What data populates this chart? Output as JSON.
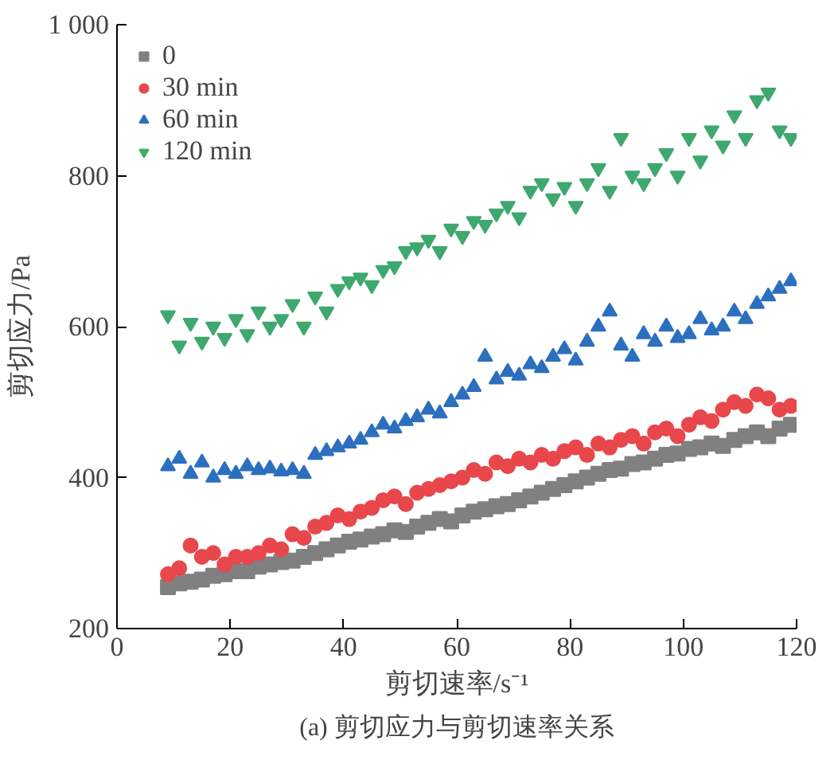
{
  "chart_data": {
    "type": "scatter",
    "title": "(a) 剪切应力与剪切速率关系",
    "xlabel": "剪切速率/s⁻¹",
    "ylabel": "剪切应力/Pa",
    "x": [
      9,
      11,
      13,
      15,
      17,
      19,
      21,
      23,
      25,
      27,
      29,
      31,
      33,
      35,
      37,
      39,
      41,
      43,
      45,
      47,
      49,
      51,
      53,
      55,
      57,
      59,
      61,
      63,
      65,
      67,
      69,
      71,
      73,
      75,
      77,
      79,
      81,
      83,
      85,
      87,
      89,
      91,
      93,
      95,
      97,
      99,
      101,
      103,
      105,
      107,
      109,
      111,
      113,
      115,
      117,
      119
    ],
    "xlim": [
      0,
      120
    ],
    "xticks": [
      0,
      20,
      40,
      60,
      80,
      100,
      120
    ],
    "ylim": [
      200,
      1000
    ],
    "yticks": [
      200,
      400,
      600,
      800,
      {
        "value": 1000,
        "label": "1 000"
      }
    ],
    "legend": "top left",
    "grid": false,
    "series": [
      {
        "name": "0",
        "color": "#808080",
        "marker": "square",
        "values": [
          255,
          260,
          262,
          265,
          270,
          272,
          276,
          276,
          282,
          285,
          288,
          290,
          295,
          300,
          305,
          310,
          315,
          318,
          322,
          325,
          330,
          328,
          335,
          340,
          345,
          342,
          350,
          355,
          358,
          362,
          365,
          370,
          375,
          380,
          385,
          390,
          395,
          400,
          405,
          410,
          412,
          418,
          420,
          425,
          430,
          432,
          438,
          440,
          445,
          442,
          450,
          455,
          460,
          455,
          465,
          470
        ]
      },
      {
        "name": "30 min",
        "color": "#e8474c",
        "marker": "circle",
        "values": [
          272,
          280,
          310,
          295,
          300,
          285,
          295,
          295,
          300,
          310,
          305,
          325,
          320,
          335,
          340,
          350,
          345,
          355,
          360,
          370,
          375,
          365,
          380,
          385,
          390,
          395,
          400,
          410,
          405,
          420,
          415,
          425,
          420,
          430,
          425,
          435,
          440,
          430,
          445,
          440,
          450,
          455,
          445,
          460,
          465,
          455,
          470,
          480,
          475,
          490,
          500,
          495,
          510,
          505,
          490,
          495
        ]
      },
      {
        "name": "60 min",
        "color": "#2c6fbf",
        "marker": "triangle",
        "values": [
          415,
          425,
          405,
          420,
          400,
          410,
          405,
          415,
          410,
          412,
          408,
          410,
          405,
          430,
          435,
          440,
          445,
          450,
          460,
          470,
          465,
          475,
          480,
          490,
          485,
          500,
          510,
          520,
          560,
          530,
          540,
          535,
          550,
          545,
          560,
          570,
          555,
          580,
          600,
          620,
          575,
          560,
          590,
          580,
          600,
          585,
          590,
          610,
          595,
          600,
          620,
          610,
          630,
          640,
          650,
          660
        ]
      },
      {
        "name": "120 min",
        "color": "#3fa86e",
        "marker": "triangle",
        "values": [
          615,
          575,
          605,
          580,
          600,
          585,
          610,
          590,
          620,
          600,
          610,
          630,
          600,
          640,
          620,
          650,
          660,
          665,
          655,
          675,
          680,
          700,
          705,
          715,
          700,
          730,
          720,
          740,
          735,
          750,
          760,
          745,
          780,
          790,
          770,
          785,
          760,
          790,
          810,
          780,
          850,
          800,
          790,
          810,
          830,
          800,
          850,
          820,
          860,
          840,
          880,
          850,
          900,
          910,
          860,
          850
        ]
      }
    ]
  }
}
